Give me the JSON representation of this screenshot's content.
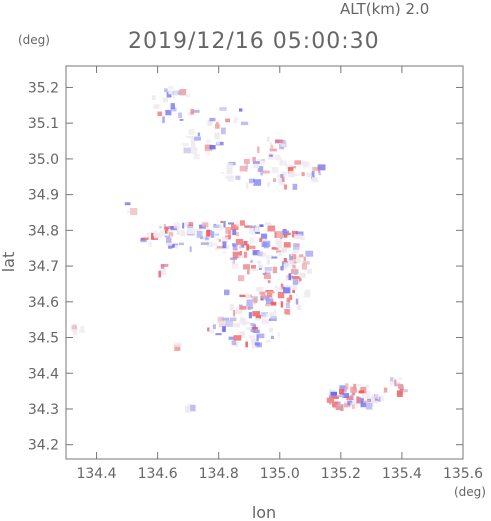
{
  "chart_data": {
    "type": "heatmap",
    "title": "2019/12/16 05:00:30",
    "altitude_label": "ALT(km) 2.0",
    "xlabel": "lon",
    "ylabel": "lat",
    "x_unit": "(deg)",
    "y_unit": "(deg)",
    "xlim": [
      134.3,
      135.6
    ],
    "ylim": [
      34.16,
      35.26
    ],
    "x_ticks": [
      "134.4",
      "134.6",
      "134.8",
      "135.0",
      "135.2",
      "135.4",
      "135.6"
    ],
    "y_ticks": [
      "34.2",
      "34.3",
      "34.4",
      "34.5",
      "34.6",
      "34.7",
      "34.8",
      "34.9",
      "35.0",
      "35.1",
      "35.2"
    ],
    "colors": {
      "positive": "#ee5555",
      "negative": "#6666ee",
      "neutral": "#eeeaf0",
      "axis": "#777777"
    },
    "clusters": [
      {
        "lon": 134.65,
        "lat": 35.16,
        "rlon": 0.08,
        "rlat": 0.05,
        "n": 22
      },
      {
        "lon": 134.82,
        "lat": 35.12,
        "rlon": 0.06,
        "rlat": 0.04,
        "n": 10
      },
      {
        "lon": 134.73,
        "lat": 35.05,
        "rlon": 0.07,
        "rlat": 0.04,
        "n": 18
      },
      {
        "lon": 134.97,
        "lat": 34.97,
        "rlon": 0.17,
        "rlat": 0.045,
        "n": 60
      },
      {
        "lon": 134.97,
        "lat": 35.04,
        "rlon": 0.06,
        "rlat": 0.03,
        "n": 14
      },
      {
        "lon": 134.8,
        "lat": 34.79,
        "rlon": 0.28,
        "rlat": 0.04,
        "n": 110
      },
      {
        "lon": 134.95,
        "lat": 34.73,
        "rlon": 0.15,
        "rlat": 0.05,
        "n": 60
      },
      {
        "lon": 134.95,
        "lat": 34.63,
        "rlon": 0.15,
        "rlat": 0.06,
        "n": 60
      },
      {
        "lon": 134.88,
        "lat": 34.53,
        "rlon": 0.12,
        "rlat": 0.05,
        "n": 55
      },
      {
        "lon": 135.24,
        "lat": 34.34,
        "rlon": 0.09,
        "rlat": 0.035,
        "n": 60
      },
      {
        "lon": 135.37,
        "lat": 34.37,
        "rlon": 0.04,
        "rlat": 0.02,
        "n": 14
      },
      {
        "lon": 134.33,
        "lat": 34.53,
        "rlon": 0.02,
        "rlat": 0.012,
        "n": 6
      },
      {
        "lon": 134.5,
        "lat": 34.87,
        "rlon": 0.015,
        "rlat": 0.015,
        "n": 3
      },
      {
        "lon": 134.6,
        "lat": 34.7,
        "rlon": 0.02,
        "rlat": 0.02,
        "n": 4
      },
      {
        "lon": 134.7,
        "lat": 34.31,
        "rlon": 0.01,
        "rlat": 0.01,
        "n": 3
      },
      {
        "lon": 134.66,
        "lat": 34.48,
        "rlon": 0.01,
        "rlat": 0.01,
        "n": 2
      },
      {
        "lon": 135.05,
        "lat": 34.7,
        "rlon": 0.04,
        "rlat": 0.04,
        "n": 16
      }
    ]
  }
}
